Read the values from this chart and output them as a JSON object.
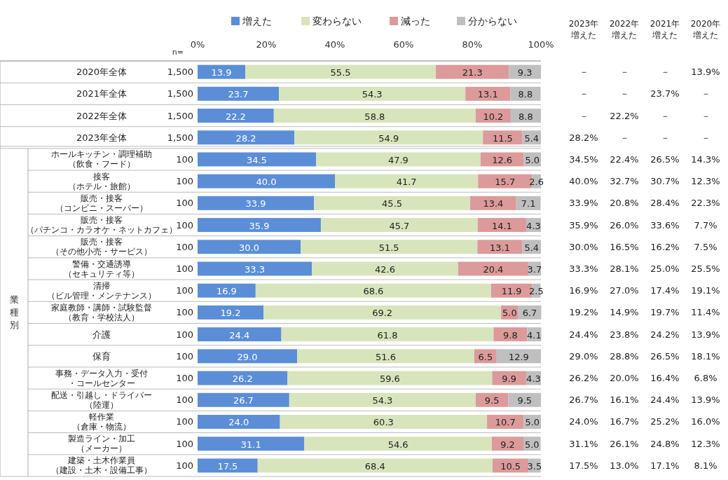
{
  "chart_data": {
    "type": "bar",
    "orientation": "horizontal",
    "stacked": true,
    "legend": "top",
    "grid": false,
    "categories": [
      "2020年全体",
      "2021年全体",
      "2022年全体",
      "2023年全体",
      "ホールキッチン・調理補助（飲食・フード）",
      "接客（ホテル・旅館）",
      "販売・接客（コンビニ・スーパー）",
      "販売・接客（パチンコ・カラオケ・ネットカフェ）",
      "販売・接客（その他小売・サービス）",
      "警備・交通誘導（セキュリティ等）",
      "清掃（ビル管理・メンテナンス）",
      "家庭教師・講師・試験監督（教育・学校法人）",
      "介護",
      "保育",
      "事務・データ入力・受付・コールセンター",
      "配送・引越し・ドライバー（陸運）",
      "軽作業（倉庫・物流）",
      "製造ライン・加工（メーカー）",
      "建築・土木作業員（建設・土木・設備工事）"
    ],
    "y2label": "n=",
    "y2_categories": [
      "1,500",
      "1,500",
      "1,500",
      "1,500",
      "100",
      "100",
      "100",
      "100",
      "100",
      "100",
      "100",
      "100",
      "100",
      "100",
      "100",
      "100",
      "100",
      "100",
      "100"
    ],
    "xlim": [
      0,
      100
    ],
    "xticks": [
      {
        "value": 0,
        "label": "0%"
      },
      {
        "value": 20,
        "label": "20%"
      },
      {
        "value": 40,
        "label": "40%"
      },
      {
        "value": 60,
        "label": "60%"
      },
      {
        "value": 80,
        "label": "80%"
      },
      {
        "value": 100,
        "label": "100%"
      }
    ],
    "annotations": [
      "業種別",
      "2023年増えた",
      "2022年増えた",
      "2021年増えた",
      "2020年増えた",
      "－",
      "－",
      "－",
      "13.9%",
      "－",
      "－",
      "23.7%",
      "－",
      "－",
      "22.2%",
      "－",
      "－",
      "28.2%",
      "－",
      "－",
      "－",
      "34.5%",
      "22.4%",
      "26.5%",
      "14.3%",
      "40.0%",
      "32.7%",
      "30.7%",
      "12.3%",
      "33.9%",
      "20.8%",
      "28.4%",
      "22.3%",
      "35.9%",
      "26.0%",
      "33.6%",
      "7.7%",
      "30.0%",
      "16.5%",
      "16.2%",
      "7.5%",
      "33.3%",
      "28.1%",
      "25.0%",
      "25.5%",
      "16.9%",
      "27.0%",
      "17.4%",
      "19.1%",
      "19.2%",
      "14.9%",
      "19.7%",
      "11.4%",
      "24.4%",
      "23.8%",
      "24.2%",
      "13.9%",
      "29.0%",
      "28.8%",
      "26.5%",
      "18.1%",
      "26.2%",
      "20.0%",
      "16.4%",
      "6.8%",
      "26.7%",
      "16.1%",
      "24.4%",
      "13.9%",
      "24.0%",
      "16.7%",
      "25.2%",
      "16.0%",
      "31.1%",
      "26.1%",
      "24.8%",
      "12.3%",
      "17.5%",
      "13.0%",
      "17.1%",
      "8.1%"
    ],
    "series": [
      {
        "name": "増えた",
        "color": "#5b8ed6",
        "values": [
          13.9,
          23.7,
          22.2,
          28.2,
          34.5,
          40.0,
          33.9,
          35.9,
          30.0,
          33.3,
          16.9,
          19.2,
          24.4,
          29.0,
          26.2,
          26.7,
          24.0,
          31.1,
          17.5
        ],
        "value_labels": [
          "13.9",
          "23.7",
          "22.2",
          "28.2",
          "34.5",
          "40.0",
          "33.9",
          "35.9",
          "30.0",
          "33.3",
          "16.9",
          "19.2",
          "24.4",
          "29.0",
          "26.2",
          "26.7",
          "24.0",
          "31.1",
          "17.5"
        ]
      },
      {
        "name": "変わらない",
        "color": "#d8e4bc",
        "values": [
          55.5,
          54.3,
          58.8,
          54.9,
          47.9,
          41.7,
          45.5,
          45.7,
          51.5,
          42.6,
          68.6,
          69.2,
          61.8,
          51.6,
          59.6,
          54.3,
          60.3,
          54.6,
          68.4
        ],
        "value_labels": [
          "55.5",
          "54.3",
          "58.8",
          "54.9",
          "47.9",
          "41.7",
          "45.5",
          "45.7",
          "51.5",
          "42.6",
          "68.6",
          "69.2",
          "61.8",
          "51.6",
          "59.6",
          "54.3",
          "60.3",
          "54.6",
          "68.4"
        ]
      },
      {
        "name": "減った",
        "color": "#dc9a9a",
        "values": [
          21.3,
          13.1,
          10.2,
          11.5,
          12.6,
          15.7,
          13.4,
          14.1,
          13.1,
          20.4,
          11.9,
          5.0,
          9.8,
          6.5,
          9.9,
          9.5,
          10.7,
          9.2,
          10.5
        ],
        "value_labels": [
          "21.3",
          "13.1",
          "10.2",
          "11.5",
          "12.6",
          "15.7",
          "13.4",
          "14.1",
          "13.1",
          "20.4",
          "11.9",
          "5.0",
          "9.8",
          "6.5",
          "9.9",
          "9.5",
          "10.7",
          "9.2",
          "10.5"
        ]
      },
      {
        "name": "分からない",
        "color": "#bfbfbf",
        "values": [
          9.3,
          8.8,
          8.8,
          5.4,
          5.0,
          2.6,
          7.1,
          4.3,
          5.4,
          3.7,
          2.5,
          6.7,
          4.1,
          12.9,
          4.3,
          9.5,
          5.0,
          5.0,
          3.5
        ],
        "value_labels": [
          "9.3",
          "8.8",
          "8.8",
          "5.4",
          "5.0",
          "2.6",
          "7.1",
          "4.3",
          "5.4",
          "3.7",
          "2.5",
          "6.7",
          "4.1",
          "12.9",
          "4.3",
          "9.5",
          "5.0",
          "5.0",
          "3.5"
        ]
      }
    ]
  }
}
